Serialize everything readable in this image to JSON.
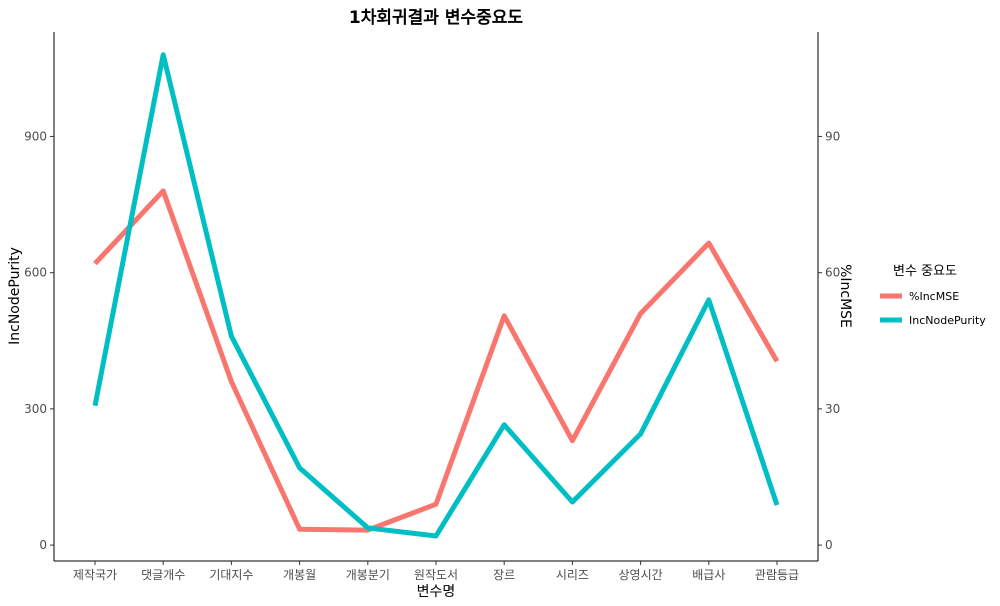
{
  "chart_data": {
    "type": "line",
    "title": "1차회귀결과 변수중요도",
    "xlabel": "변수명",
    "ylabel_left": "IncNodePurity",
    "ylabel_right": "%IncMSE",
    "categories": [
      "제작국가",
      "댓글개수",
      "기대지수",
      "개봉월",
      "개봉분기",
      "원작도서",
      "장르",
      "시리즈",
      "상영시간",
      "배급사",
      "관람등급"
    ],
    "left_axis": {
      "ticks": [
        0,
        300,
        600,
        900
      ],
      "ylim": [
        -35,
        1130
      ]
    },
    "right_axis": {
      "ticks": [
        0,
        30,
        60,
        90
      ],
      "ylim": [
        -3.5,
        113
      ]
    },
    "series": [
      {
        "name": "%IncMSE",
        "axis": "right",
        "color": "#F8766D",
        "values": [
          62,
          78,
          36,
          3.5,
          3.3,
          9,
          50.5,
          23,
          51,
          66.5,
          40.5
        ]
      },
      {
        "name": "IncNodePurity",
        "axis": "left",
        "color": "#00BFC4",
        "values": [
          307,
          1080,
          460,
          170,
          38,
          20,
          265,
          95,
          245,
          540,
          88
        ]
      }
    ],
    "legend": {
      "title": "변수 중요도",
      "position": "right"
    },
    "grid": false
  }
}
